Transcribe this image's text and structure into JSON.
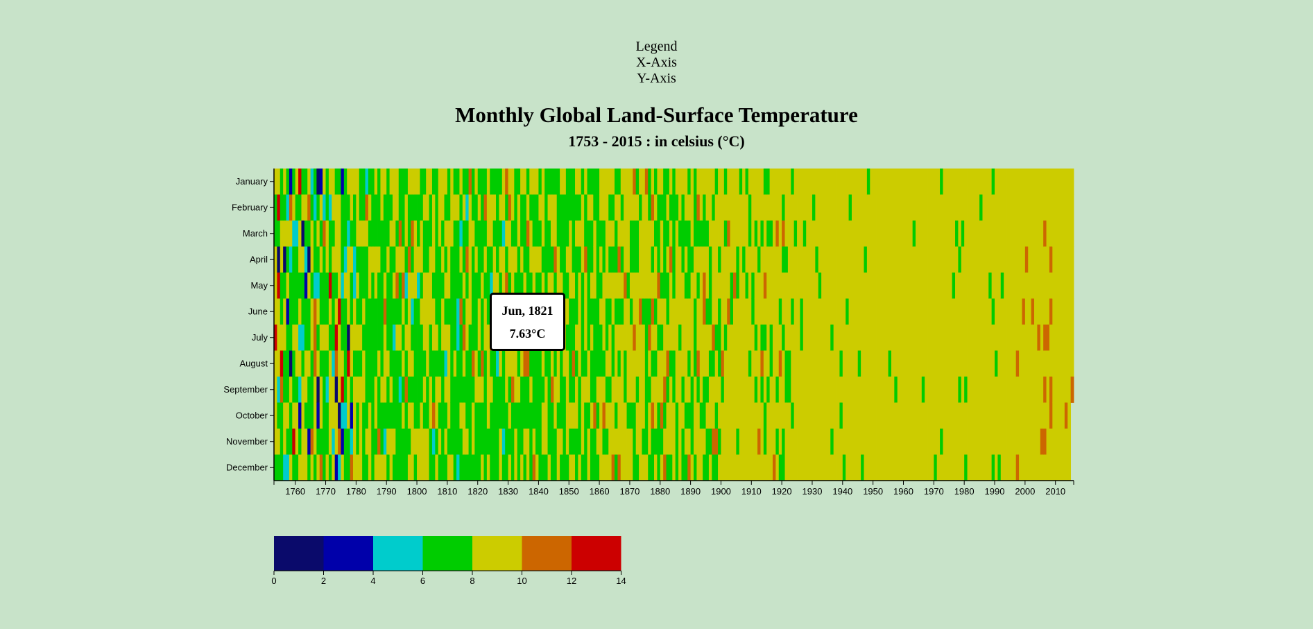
{
  "nav": {
    "links": [
      "Legend",
      "X-Axis",
      "Y-Axis"
    ]
  },
  "header": {
    "title": "Monthly Global Land-Surface Temperature",
    "subtitle": "1753 - 2015 : in celsius (°C)"
  },
  "tooltip": {
    "date": "Jun, 1821",
    "temp": "7.63°C"
  },
  "colors": {
    "background": "#c8e3c9",
    "scale": [
      "#0a0a6b",
      "#0000aa",
      "#00cccc",
      "#00cc00",
      "#cccc00",
      "#cc6600",
      "#cc0000"
    ]
  },
  "chart_data": {
    "type": "heatmap",
    "title": "Monthly Global Land-Surface Temperature",
    "subtitle": "1753 - 2015 : in celsius (°C)",
    "x_range": [
      1753,
      2015
    ],
    "x_ticks": [
      1760,
      1770,
      1780,
      1790,
      1800,
      1810,
      1820,
      1830,
      1840,
      1850,
      1860,
      1870,
      1880,
      1890,
      1900,
      1910,
      1920,
      1930,
      1940,
      1950,
      1960,
      1970,
      1980,
      1990,
      2000,
      2010
    ],
    "y_categories": [
      "January",
      "February",
      "March",
      "April",
      "May",
      "June",
      "July",
      "August",
      "September",
      "October",
      "November",
      "December"
    ],
    "legend": {
      "thresholds": [
        0,
        2,
        4,
        6,
        8,
        10,
        12,
        14
      ],
      "placement": "bottom-left"
    },
    "highlight": {
      "month": "June",
      "year": 1821,
      "temp": 7.63
    }
  }
}
